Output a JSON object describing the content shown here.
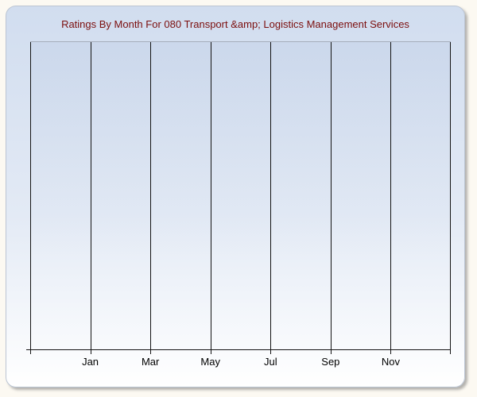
{
  "page": {
    "background_color": "#fcf9f2"
  },
  "panel": {
    "background_top_color": "#d1ddef",
    "background_bottom_color": "#ffffff",
    "border_color": "#bcc5d3"
  },
  "chart": {
    "title": "Ratings By Month For 080 Transport &amp; Logistics Management Services",
    "title_color": "#7b0e0e"
  },
  "axis": {
    "gridline_count": 8,
    "gridline_color": "#141414",
    "plot_top_border_color": "#a6adbb",
    "label_color": "#000000",
    "tick_labels": [
      "Jan",
      "Mar",
      "May",
      "Jul",
      "Sep",
      "Nov"
    ]
  },
  "chart_data": {
    "type": "line",
    "title": "Ratings By Month For 080 Transport &amp; Logistics Management Services",
    "xlabel": "",
    "ylabel": "",
    "x_tick_labels": [
      "Jan",
      "Mar",
      "May",
      "Jul",
      "Sep",
      "Nov"
    ],
    "series": [],
    "values": [],
    "layout": {
      "grid": "vertical-only",
      "legend": "none",
      "plot_empty": true,
      "y_tick_labels": []
    }
  }
}
